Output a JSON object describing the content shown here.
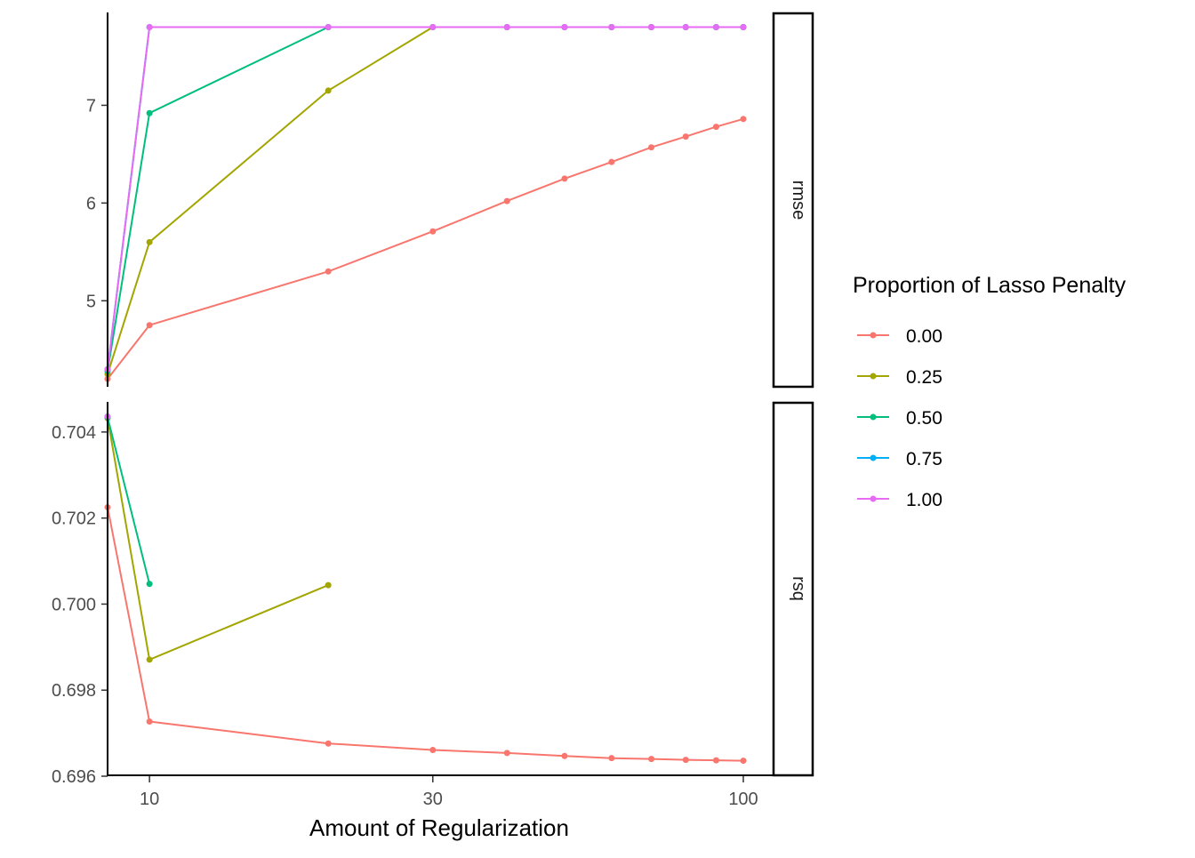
{
  "chart_data": {
    "type": "line",
    "xlabel": "Amount of Regularization",
    "x_scale": "log10",
    "x": [
      8.5,
      10,
      20,
      30,
      40,
      50,
      60,
      70,
      80,
      90,
      100
    ],
    "x_ticks": [
      10,
      30,
      100
    ],
    "x_tick_labels": [
      "10",
      "30",
      "100"
    ],
    "xlim": [
      8.5,
      100
    ],
    "legend": {
      "title": "Proportion of Lasso Penalty",
      "position": "right",
      "entries": [
        {
          "label": "0.00",
          "color": "#F8766D"
        },
        {
          "label": "0.25",
          "color": "#A3A500"
        },
        {
          "label": "0.50",
          "color": "#00BF7D"
        },
        {
          "label": "0.75",
          "color": "#00B0F6"
        },
        {
          "label": "1.00",
          "color": "#E76BF3"
        }
      ]
    },
    "grid": false,
    "facets": [
      {
        "strip": "rmse",
        "ylim": [
          4.12,
          7.95
        ],
        "y_ticks": [
          5,
          6,
          7
        ],
        "y_tick_labels": [
          "5",
          "6",
          "7"
        ],
        "series": [
          {
            "legend_index": 0,
            "values": [
              4.2,
              4.75,
              5.3,
              5.71,
              6.02,
              6.25,
              6.42,
              6.57,
              6.68,
              6.78,
              6.86
            ]
          },
          {
            "legend_index": 1,
            "values": [
              4.25,
              5.6,
              7.15,
              7.8,
              7.8,
              7.8,
              7.8,
              7.8,
              7.8,
              7.8,
              7.8
            ]
          },
          {
            "legend_index": 2,
            "values": [
              4.28,
              6.92,
              7.8,
              7.8,
              7.8,
              7.8,
              7.8,
              7.8,
              7.8,
              7.8,
              7.8
            ]
          },
          {
            "legend_index": 3,
            "values": [
              4.3,
              7.8,
              7.8,
              7.8,
              7.8,
              7.8,
              7.8,
              7.8,
              7.8,
              7.8,
              7.8
            ]
          },
          {
            "legend_index": 4,
            "values": [
              4.3,
              7.8,
              7.8,
              7.8,
              7.8,
              7.8,
              7.8,
              7.8,
              7.8,
              7.8,
              7.8
            ]
          }
        ]
      },
      {
        "strip": "rsq",
        "ylim": [
          0.696,
          0.7047
        ],
        "y_ticks": [
          0.696,
          0.698,
          0.7,
          0.702,
          0.704
        ],
        "y_tick_labels": [
          "0.696",
          "0.698",
          "0.700",
          "0.702",
          "0.704"
        ],
        "series": [
          {
            "legend_index": 0,
            "values": [
              0.70225,
              0.69727,
              0.69676,
              0.69661,
              0.69654,
              0.69647,
              0.69642,
              0.6964,
              0.69638,
              0.69637,
              0.69636
            ]
          },
          {
            "legend_index": 1,
            "values": [
              0.70432,
              0.69871,
              0.70044,
              null,
              null,
              null,
              null,
              null,
              null,
              null,
              null
            ]
          },
          {
            "legend_index": 2,
            "values": [
              0.70434,
              0.70047,
              null,
              null,
              null,
              null,
              null,
              null,
              null,
              null,
              null
            ]
          },
          {
            "legend_index": 3,
            "values": [
              0.70436,
              null,
              null,
              null,
              null,
              null,
              null,
              null,
              null,
              null,
              null
            ]
          },
          {
            "legend_index": 4,
            "values": [
              0.70436,
              null,
              null,
              null,
              null,
              null,
              null,
              null,
              null,
              null,
              null
            ]
          }
        ]
      }
    ]
  }
}
